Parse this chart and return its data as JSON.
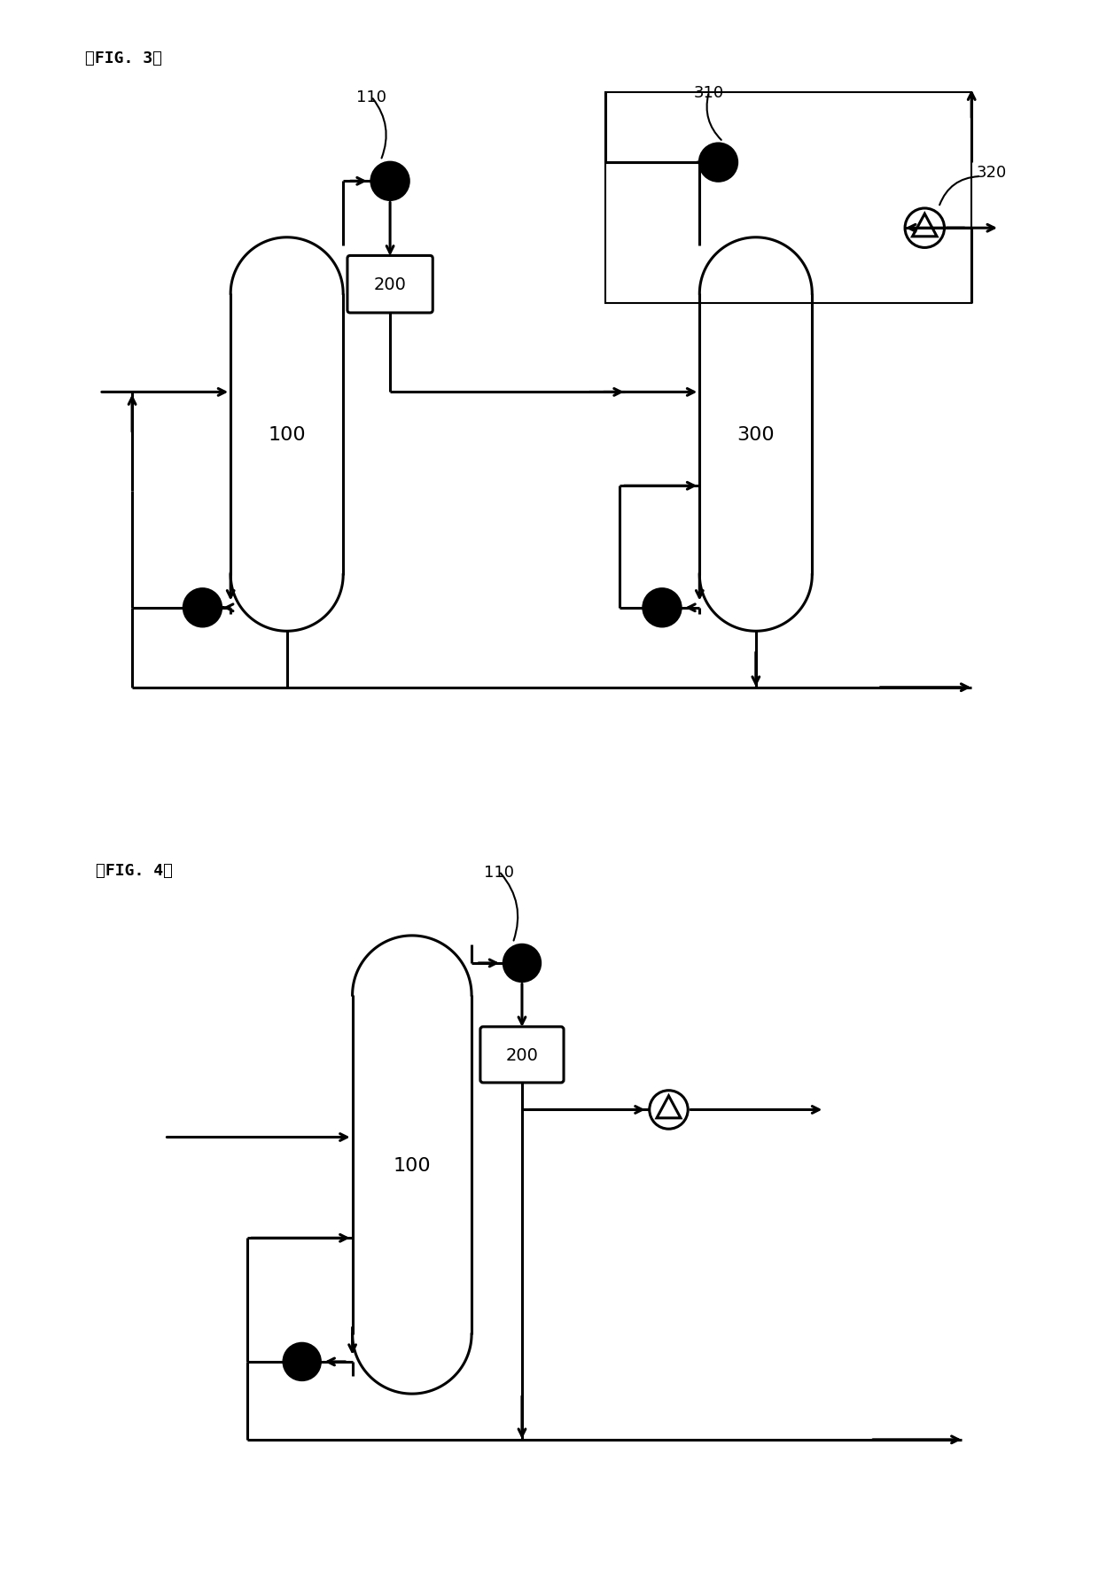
{
  "fig3_label": "』FIG. 3】",
  "fig4_label": "』FIG. 4】",
  "background_color": "#ffffff",
  "lw": 2.2,
  "thin_lw": 1.5
}
